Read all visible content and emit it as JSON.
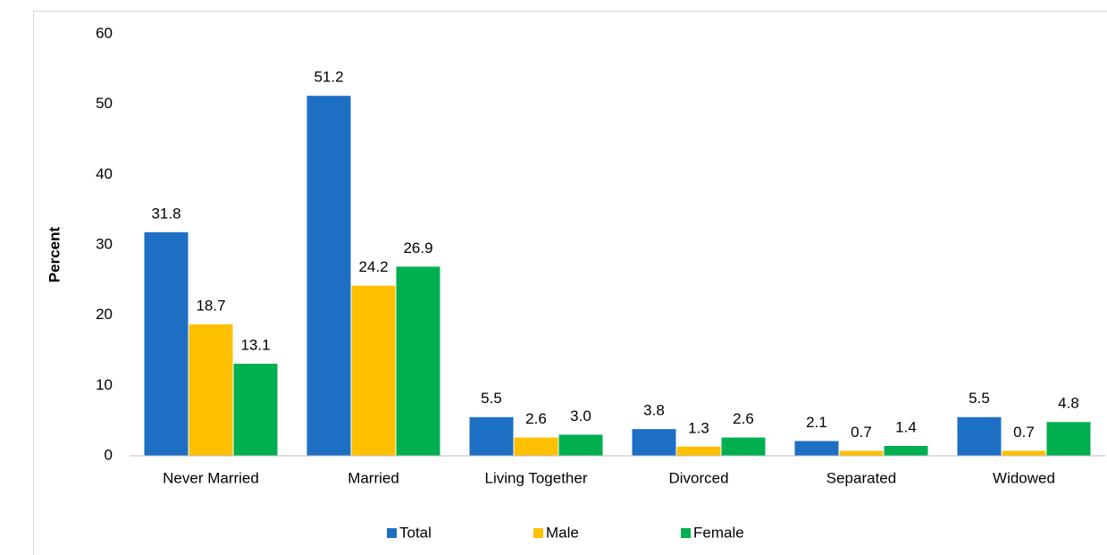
{
  "chart_data": {
    "type": "bar",
    "y_label": "Percent",
    "categories": [
      "Never Married",
      "Married",
      "Living Together",
      "Divorced",
      "Separated",
      "Widowed"
    ],
    "series": [
      {
        "name": "Total",
        "color": "#1d6fc4",
        "values": [
          31.8,
          51.2,
          5.5,
          3.8,
          2.1,
          5.5
        ],
        "value_labels": [
          "31.8",
          "51.2",
          "5.5",
          "3.8",
          "2.1",
          "5.5"
        ]
      },
      {
        "name": "Male",
        "color": "#ffc000",
        "values": [
          18.7,
          24.2,
          2.6,
          1.3,
          0.7,
          0.7
        ],
        "value_labels": [
          "18.7",
          "24.2",
          "2.6",
          "1.3",
          "0.7",
          "0.7"
        ]
      },
      {
        "name": "Female",
        "color": "#00b050",
        "values": [
          13.1,
          26.9,
          3.0,
          2.6,
          1.4,
          4.8
        ],
        "value_labels": [
          "13.1",
          "26.9",
          "3.0",
          "2.6",
          "1.4",
          "4.8"
        ]
      }
    ],
    "ylim": [
      0,
      60
    ],
    "yticks": [
      0,
      10,
      20,
      30,
      40,
      50,
      60
    ],
    "grid": false,
    "legend": "bottom"
  }
}
